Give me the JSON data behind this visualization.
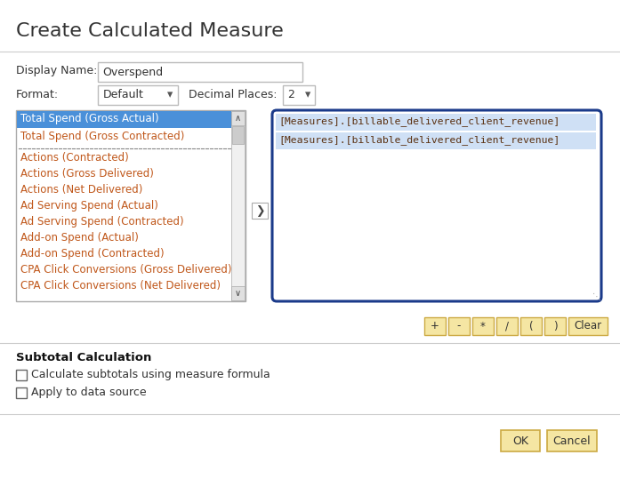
{
  "title": "Create Calculated Measure",
  "display_name_label": "Display Name:",
  "display_name_value": "Overspend",
  "format_label": "Format:",
  "format_value": "Default",
  "decimal_label": "Decimal Places:",
  "decimal_value": "2",
  "list_items_top": [
    "Total Spend (Gross Actual)",
    "Total Spend (Gross Contracted)"
  ],
  "list_items_bottom": [
    "Actions (Contracted)",
    "Actions (Gross Delivered)",
    "Actions (Net Delivered)",
    "Ad Serving Spend (Actual)",
    "Ad Serving Spend (Contracted)",
    "Add-on Spend (Actual)",
    "Add-on Spend (Contracted)",
    "CPA Click Conversions (Gross Delivered)",
    "CPA Click Conversions (Net Delivered)"
  ],
  "formula_lines": [
    "[Measures].[billable_delivered_client_revenue]",
    "[Measures].[billable_delivered_client_revenue]"
  ],
  "operator_buttons": [
    "+",
    "-",
    "*",
    "/",
    "(",
    ")",
    "Clear"
  ],
  "subtotal_title": "Subtotal Calculation",
  "checkbox1": "Calculate subtotals using measure formula",
  "checkbox2": "Apply to data source",
  "ok_button": "OK",
  "cancel_button": "Cancel",
  "bg_color": "#ffffff",
  "title_color": "#333333",
  "label_color": "#333333",
  "selected_bg": "#4a90d9",
  "selected_text": "#ffffff",
  "formula_box_border": "#1a3a8a",
  "formula_bg": "#ffffff",
  "button_bg": "#f5e6a3",
  "button_border": "#ccaa44",
  "arrow_color": "#444444",
  "separator_color": "#666666",
  "list_text_color": "#c0571a",
  "formula_text_color": "#5a3010"
}
